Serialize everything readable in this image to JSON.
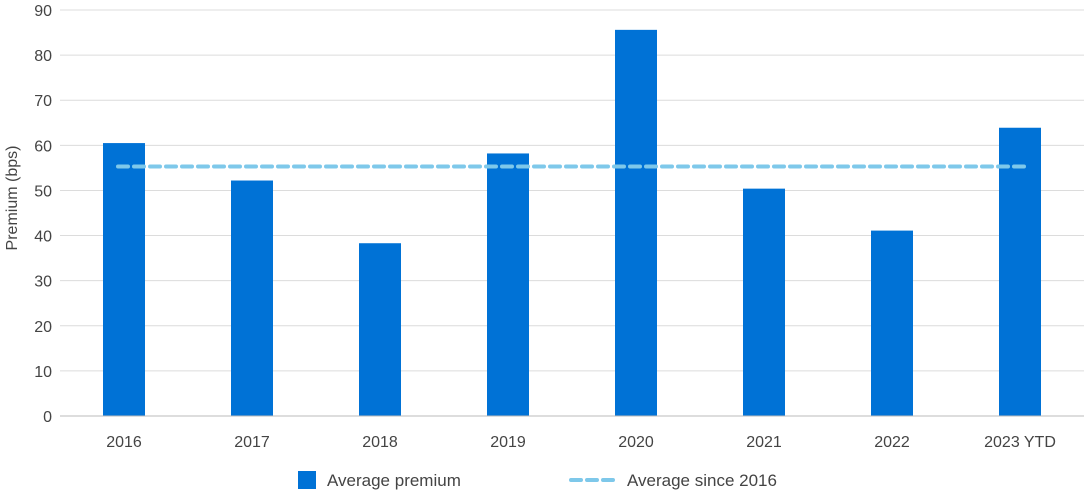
{
  "chart_data": {
    "type": "bar",
    "title": "",
    "xlabel": "",
    "ylabel": "Premium (bps)",
    "ylim": [
      0,
      90
    ],
    "yticks": [
      0,
      10,
      20,
      30,
      40,
      50,
      60,
      70,
      80,
      90
    ],
    "grid": true,
    "categories": [
      "2016",
      "2017",
      "2018",
      "2019",
      "2020",
      "2021",
      "2022",
      "2023 YTD"
    ],
    "series": [
      {
        "name": "Average premium",
        "kind": "bar",
        "color": "#0072d6",
        "values": [
          60.5,
          52.2,
          38.3,
          58.2,
          85.6,
          50.4,
          41.1,
          63.9
        ]
      },
      {
        "name": "Average since 2016",
        "kind": "dashed-line",
        "color": "#7ec8ea",
        "values": [
          55.3,
          55.3,
          55.3,
          55.3,
          55.3,
          55.3,
          55.3,
          55.3
        ]
      }
    ],
    "legend_position": "bottom"
  }
}
